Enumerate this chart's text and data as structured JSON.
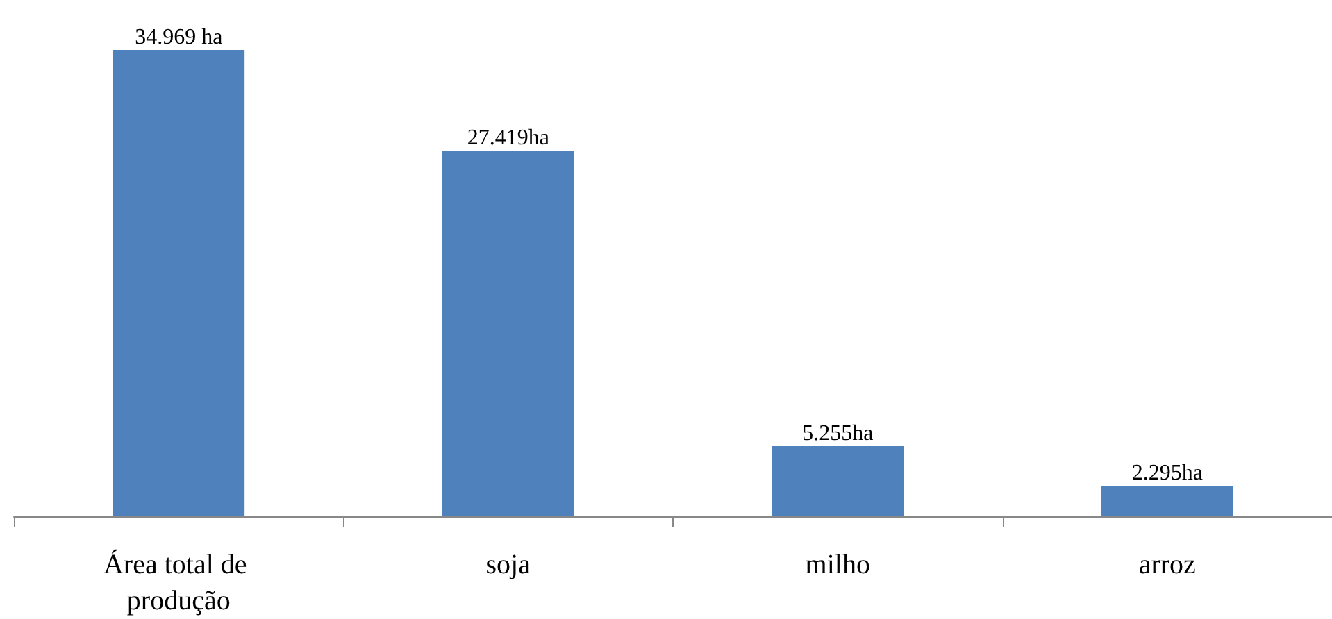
{
  "chart_data": {
    "type": "bar",
    "categories": [
      "Área total de produção",
      "soja",
      "milho",
      "arroz"
    ],
    "values": [
      34969,
      27419,
      5255,
      2295
    ],
    "value_labels": [
      "34.969 ha",
      "27.419ha",
      "5.255ha",
      "2.295ha"
    ],
    "color": "#4f81bd",
    "grid": false
  }
}
